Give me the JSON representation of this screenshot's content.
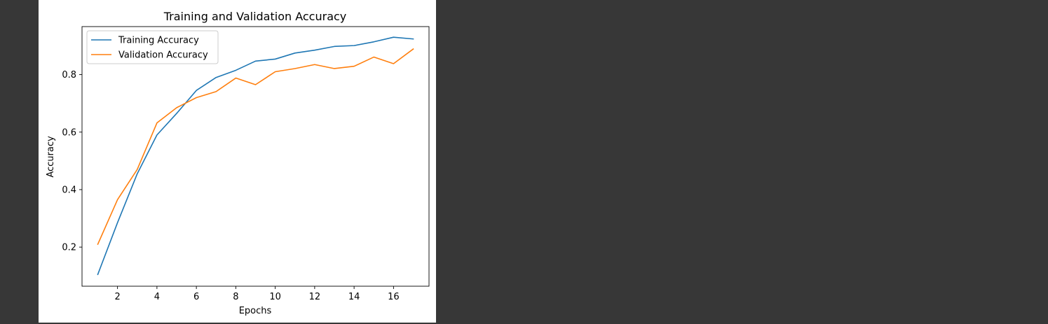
{
  "chart_data": {
    "type": "line",
    "title": "Training and Validation Accuracy",
    "xlabel": "Epochs",
    "ylabel": "Accuracy",
    "x": [
      1,
      2,
      3,
      4,
      5,
      6,
      7,
      8,
      9,
      10,
      11,
      12,
      13,
      14,
      15,
      16,
      17
    ],
    "series": [
      {
        "name": "Training Accuracy",
        "color": "#1f77b4",
        "values": [
          0.105,
          0.285,
          0.455,
          0.59,
          0.665,
          0.745,
          0.79,
          0.815,
          0.847,
          0.854,
          0.875,
          0.885,
          0.898,
          0.901,
          0.914,
          0.93,
          0.924
        ]
      },
      {
        "name": "Validation Accuracy",
        "color": "#ff7f0e",
        "values": [
          0.21,
          0.365,
          0.47,
          0.632,
          0.685,
          0.72,
          0.741,
          0.788,
          0.765,
          0.81,
          0.821,
          0.835,
          0.821,
          0.829,
          0.861,
          0.838,
          0.889
        ]
      }
    ],
    "xlim": [
      0.2,
      17.8
    ],
    "ylim": [
      0.064,
      0.967
    ],
    "xticks": [
      2,
      4,
      6,
      8,
      10,
      12,
      14,
      16
    ],
    "yticks": [
      0.2,
      0.4,
      0.6,
      0.8
    ],
    "xtick_labels": [
      "2",
      "4",
      "6",
      "8",
      "10",
      "12",
      "14",
      "16"
    ],
    "ytick_labels": [
      "0.2",
      "0.4",
      "0.6",
      "0.8"
    ],
    "grid": false,
    "legend": "upper left"
  }
}
